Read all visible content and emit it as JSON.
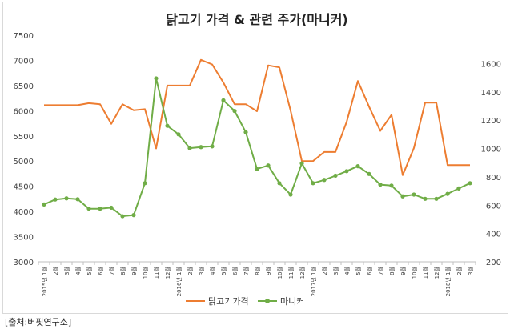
{
  "chart_data": {
    "type": "line",
    "title": "닭고기 가격 & 관련 주가(마니커)",
    "x": [
      "2015년 1월",
      "2월",
      "3월",
      "4월",
      "5월",
      "6월",
      "7월",
      "8월",
      "9월",
      "10월",
      "11월",
      "12월",
      "2016년 1월",
      "2월",
      "3월",
      "4월",
      "5월",
      "6월",
      "7월",
      "8월",
      "9월",
      "10월",
      "11월",
      "12월",
      "2017년 1월",
      "2월",
      "3월",
      "4월",
      "5월",
      "6월",
      "7월",
      "8월",
      "9월",
      "10월",
      "11월",
      "12월",
      "2018년 1월",
      "2월",
      "3월"
    ],
    "series": [
      {
        "name": "닭고기가격",
        "axis": "left",
        "color": "#ed7d31",
        "values": [
          6110,
          6110,
          6110,
          6110,
          6150,
          6130,
          5740,
          6130,
          6010,
          6030,
          5250,
          6500,
          6500,
          6500,
          7010,
          6920,
          6560,
          6130,
          6130,
          5990,
          6900,
          6860,
          6000,
          5000,
          5000,
          5180,
          5180,
          5780,
          6590,
          6080,
          5600,
          5920,
          4720,
          5260,
          6160,
          6160,
          4920,
          4920,
          4920
        ]
      },
      {
        "name": "마니커",
        "axis": "right",
        "color": "#70ad47",
        "values": [
          605,
          640,
          648,
          642,
          575,
          575,
          582,
          522,
          530,
          755,
          1495,
          1160,
          1100,
          1002,
          1010,
          1015,
          1340,
          1265,
          1115,
          855,
          880,
          755,
          675,
          895,
          755,
          778,
          808,
          840,
          875,
          820,
          745,
          738,
          662,
          675,
          645,
          645,
          680,
          718,
          755
        ]
      }
    ],
    "ylim_left": [
      3000,
      7500
    ],
    "ylim_right": [
      200,
      1800
    ],
    "yticks_left": [
      "3000",
      "3500",
      "4000",
      "4500",
      "5000",
      "5500",
      "6000",
      "6500",
      "7000",
      "7500"
    ],
    "yticks_right": [
      "200",
      "400",
      "600",
      "800",
      "1000",
      "1200",
      "1400",
      "1600"
    ],
    "legend": "bottom",
    "grid": false,
    "source": "[출처:버핏연구소]"
  }
}
